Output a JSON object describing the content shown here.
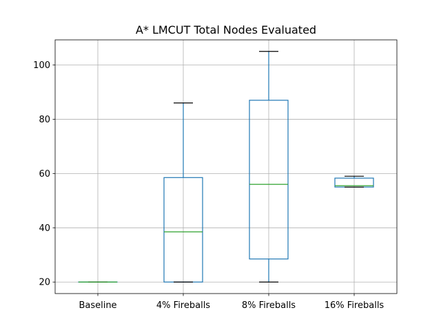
{
  "chart_data": {
    "type": "box",
    "title": "A* LMCUT Total Nodes Evaluated",
    "xlabel": "",
    "ylabel": "",
    "ylim": [
      15.75,
      109.25
    ],
    "yticks": [
      20,
      40,
      60,
      80,
      100
    ],
    "grid": true,
    "categories": [
      "Baseline",
      "4% Fireballs",
      "8% Fireballs",
      "16% Fireballs"
    ],
    "boxes": [
      {
        "whisker_low": 20,
        "q1": 20,
        "median": 20,
        "q3": 20,
        "whisker_high": 20
      },
      {
        "whisker_low": 20,
        "q1": 20,
        "median": 38.5,
        "q3": 58.5,
        "whisker_high": 86
      },
      {
        "whisker_low": 20,
        "q1": 28.5,
        "median": 56,
        "q3": 87,
        "whisker_high": 105
      },
      {
        "whisker_low": 55,
        "q1": 55,
        "median": 55.5,
        "q3": 58.3,
        "whisker_high": 59
      }
    ],
    "colors": {
      "box": "#1f77b4",
      "median": "#2ca02c",
      "cap": "#000000",
      "grid": "#b0b0b0"
    }
  }
}
